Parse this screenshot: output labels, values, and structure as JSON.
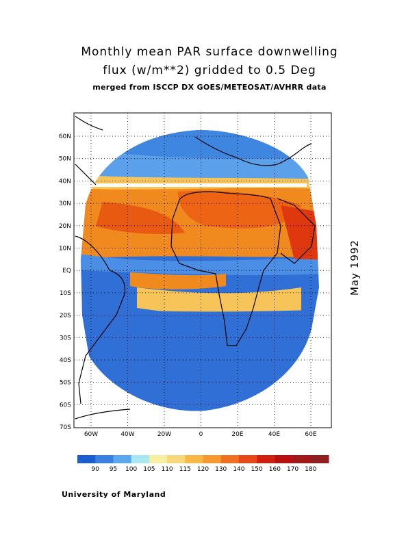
{
  "title": {
    "line1": "Monthly mean PAR surface downwelling",
    "line2": "flux (w/m**2) gridded to 0.5 Deg",
    "line3": "merged from ISCCP DX GOES/METEOSAT/AVHRR data"
  },
  "date_label": "May 1992",
  "credit": "University of Maryland",
  "map": {
    "lat_labels": [
      "60N",
      "50N",
      "40N",
      "30N",
      "20N",
      "10N",
      "EQ",
      "10S",
      "20S",
      "30S",
      "40S",
      "50S",
      "60S",
      "70S"
    ],
    "lon_labels": [
      "60W",
      "40W",
      "20W",
      "0",
      "20E",
      "40E",
      "60E"
    ],
    "colors": {
      "ocean_low": "#2f6fd6",
      "ocean_mid": "#4a8ee6",
      "land_low": "#f7c45a",
      "high": "#f08018",
      "peak": "#e83a10"
    }
  },
  "legend": {
    "labels": [
      "90",
      "95",
      "100",
      "105",
      "110",
      "115",
      "120",
      "130",
      "140",
      "150",
      "160",
      "170",
      "180"
    ],
    "colors": [
      "#1a5fd0",
      "#3a80e0",
      "#5aa8ee",
      "#a8e8f0",
      "#f8f0a0",
      "#f8d878",
      "#f8b848",
      "#f89830",
      "#f07020",
      "#e84818",
      "#d02010",
      "#b81010",
      "#a01818",
      "#902020"
    ]
  }
}
